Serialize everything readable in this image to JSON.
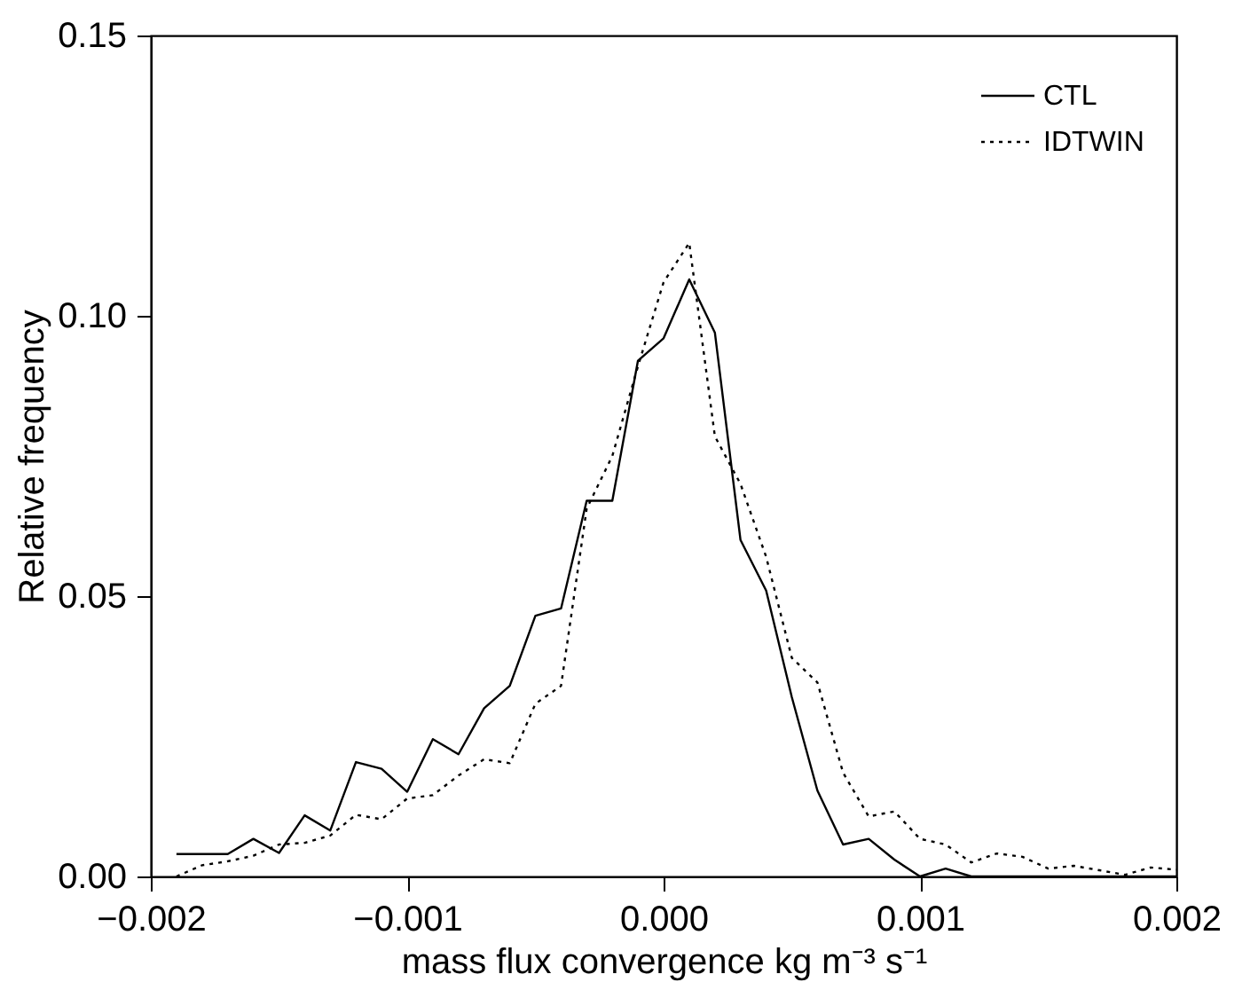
{
  "chart_data": {
    "type": "line",
    "xlabel": "mass flux convergence kg m⁻³ s⁻¹",
    "ylabel": "Relative frequency",
    "xlim": [
      -0.002,
      0.002
    ],
    "ylim": [
      0,
      0.15
    ],
    "xticks": [
      {
        "value": -0.002,
        "label": "−0.002"
      },
      {
        "value": -0.001,
        "label": "−0.001"
      },
      {
        "value": 0,
        "label": "0.000"
      },
      {
        "value": 0.001,
        "label": "0.001"
      },
      {
        "value": 0.002,
        "label": "0.002"
      }
    ],
    "yticks": [
      {
        "value": 0,
        "label": "0.00"
      },
      {
        "value": 0.05,
        "label": "0.05"
      },
      {
        "value": 0.1,
        "label": "0.10"
      },
      {
        "value": 0.15,
        "label": "0.15"
      }
    ],
    "legend": "top right",
    "grid": false,
    "marker": "none",
    "x": [
      -0.0019,
      -0.0018,
      -0.0017,
      -0.0016,
      -0.0015,
      -0.0014,
      -0.0013,
      -0.0012,
      -0.0011,
      -0.001,
      -0.0009,
      -0.0008,
      -0.0007,
      -0.0006,
      -0.0005,
      -0.0004,
      -0.0003,
      -0.0002,
      -0.0001,
      0,
      0.0001,
      0.0002,
      0.0003,
      0.0004,
      0.0005,
      0.0006,
      0.0007,
      0.0008,
      0.0009,
      0.001,
      0.0011,
      0.0012,
      0.0013,
      0.0014,
      0.0015,
      0.0016,
      0.0017,
      0.0018,
      0.0019,
      0.002
    ],
    "series": [
      {
        "name": "CTL",
        "color": "#000000",
        "line_style": "solid",
        "values": [
          0.004,
          0.004,
          0.004,
          0.0067,
          0.0042,
          0.0109,
          0.0082,
          0.0204,
          0.0192,
          0.0151,
          0.0245,
          0.0218,
          0.03,
          0.034,
          0.0465,
          0.0478,
          0.067,
          0.067,
          0.092,
          0.096,
          0.1065,
          0.097,
          0.06,
          0.051,
          0.032,
          0.0153,
          0.0057,
          0.0067,
          0.003,
          0,
          0.0014,
          0,
          0,
          0,
          0,
          0,
          0,
          0,
          0,
          0
        ]
      },
      {
        "name": "IDTWIN",
        "color": "#000000",
        "line_style": "dotted",
        "values": [
          0,
          0.002,
          0.0027,
          0.0037,
          0.0057,
          0.006,
          0.0073,
          0.011,
          0.0102,
          0.0139,
          0.0145,
          0.018,
          0.0209,
          0.0202,
          0.0308,
          0.034,
          0.0656,
          0.075,
          0.091,
          0.106,
          0.113,
          0.0785,
          0.07,
          0.057,
          0.039,
          0.0346,
          0.0185,
          0.0107,
          0.0116,
          0.0067,
          0.0057,
          0.0025,
          0.0041,
          0.0035,
          0.0014,
          0.0019,
          0.0011,
          0.0003,
          0.0016,
          0.0012
        ]
      }
    ]
  }
}
